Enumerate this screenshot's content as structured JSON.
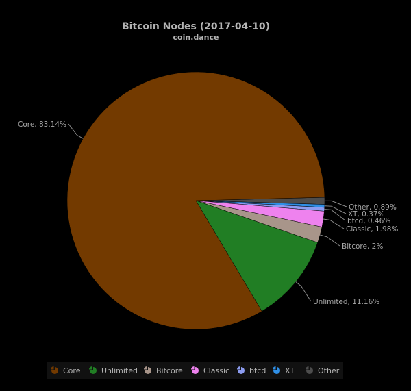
{
  "chart_data": {
    "type": "pie",
    "title": "Bitcoin Nodes (2017-04-10)",
    "subtitle": "coin.dance",
    "legend_position": "bottom",
    "slices": [
      {
        "name": "Core",
        "value": 83.14,
        "label": "Core, 83.14%",
        "color": "#733a00"
      },
      {
        "name": "Unlimited",
        "value": 11.16,
        "label": "Unlimited, 11.16%",
        "color": "#217e24"
      },
      {
        "name": "Bitcore",
        "value": 2,
        "label": "Bitcore, 2%",
        "color": "#a8958a"
      },
      {
        "name": "Classic",
        "value": 1.98,
        "label": "Classic, 1.98%",
        "color": "#ee82ee"
      },
      {
        "name": "btcd",
        "value": 0.46,
        "label": "btcd, 0.46%",
        "color": "#8c9cf0"
      },
      {
        "name": "XT",
        "value": 0.37,
        "label": "XT, 0.37%",
        "color": "#2f8fe6"
      },
      {
        "name": "Other",
        "value": 0.89,
        "label": "Other, 0.89%",
        "color": "#4d4d4d"
      }
    ]
  }
}
